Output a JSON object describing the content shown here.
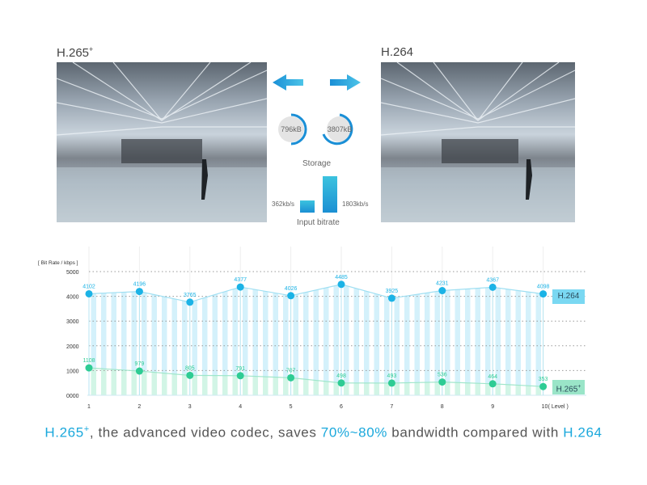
{
  "comparison": {
    "left_title": "H.265",
    "left_title_sup": "+",
    "right_title": "H.264",
    "left_arrow_icon": "arrow-left-icon",
    "right_arrow_icon": "arrow-right-icon",
    "storage": {
      "label": "Storage",
      "h265": "796kB",
      "h264": "3807kB",
      "h265_ring_fraction": 0.21,
      "h264_ring_fraction": 1.0
    },
    "bitrate": {
      "label": "Input bitrate",
      "h265": "362kb/s",
      "h264": "1803kb/s"
    }
  },
  "chart_data": {
    "type": "line",
    "ylabel": "[ Bit Rate / kbps ]",
    "xlabel": "( Level )",
    "x": [
      1,
      2,
      3,
      4,
      5,
      6,
      7,
      8,
      9,
      10
    ],
    "x_tick_labels": [
      "1",
      "2",
      "3",
      "4",
      "5",
      "6",
      "7",
      "8",
      "9",
      "10"
    ],
    "y_tick_labels": [
      "0000",
      "1000",
      "2000",
      "3000",
      "4000",
      "5000"
    ],
    "ylim": [
      0,
      5000
    ],
    "grid": "horizontal dotted",
    "legend_placement": "right",
    "series": [
      {
        "name": "H.264",
        "values": [
          4102,
          4196,
          3765,
          4377,
          4026,
          4485,
          3925,
          4231,
          4367,
          4098
        ],
        "color": "#1bb3e6"
      },
      {
        "name": "H.265",
        "name_sup": "+",
        "values": [
          1108,
          979,
          805,
          791,
          707,
          498,
          493,
          536,
          464,
          353
        ],
        "color": "#2ecc94"
      }
    ]
  },
  "tagline": {
    "codec": "H.265",
    "codec_sup": "+",
    "text1": ", the advanced video codec, saves ",
    "saving": "70%~80%",
    "text2": " bandwidth compared with ",
    "compare": "H.264"
  },
  "colors": {
    "accent_blue": "#1aa8dc",
    "accent_green": "#2ecc94"
  }
}
